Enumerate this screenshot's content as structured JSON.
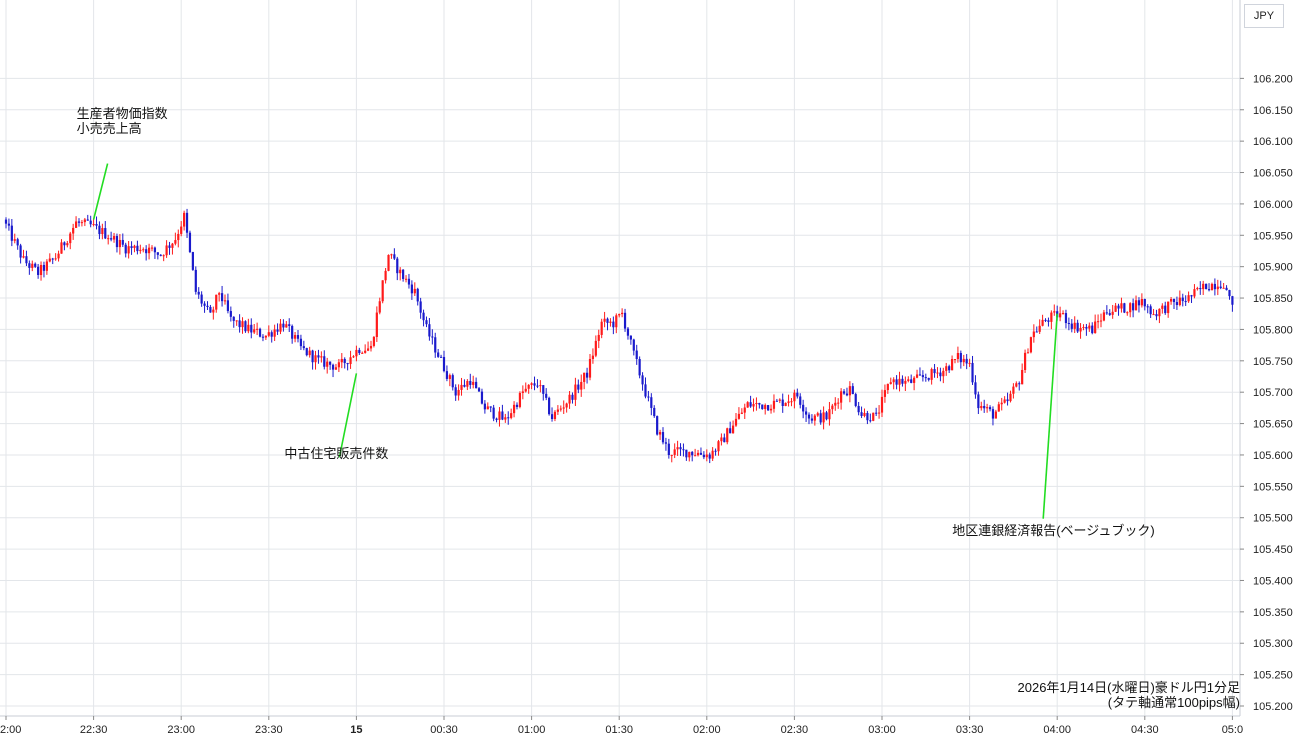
{
  "chart_data": {
    "type": "candlestick",
    "currency_label": "JPY",
    "caption_line1": "2026年1月14日(水曜日)豪ドル円1分足",
    "caption_line2": "(タテ軸通常100pips幅)",
    "ylim": [
      105.2,
      106.25
    ],
    "y_ticks": [
      "106.200",
      "106.150",
      "106.100",
      "106.050",
      "106.000",
      "105.950",
      "105.900",
      "105.850",
      "105.800",
      "105.750",
      "105.700",
      "105.650",
      "105.600",
      "105.550",
      "105.500",
      "105.450",
      "105.400",
      "105.350",
      "105.300",
      "105.250",
      "105.200"
    ],
    "x_ticks": [
      "2:00",
      "22:30",
      "23:00",
      "23:30",
      "15",
      "00:30",
      "01:00",
      "01:30",
      "02:00",
      "02:30",
      "03:00",
      "03:30",
      "04:00",
      "04:30",
      "05:0"
    ],
    "colors": {
      "up": "#ff1a1a",
      "down": "#1a1acc",
      "annotation_line": "#22dd22",
      "grid": "#e3e6ea"
    },
    "price_path": [
      {
        "t": "22:00",
        "p": 105.975
      },
      {
        "t": "22:07",
        "p": 105.91
      },
      {
        "t": "22:12",
        "p": 105.89
      },
      {
        "t": "22:18",
        "p": 105.915
      },
      {
        "t": "22:25",
        "p": 105.97
      },
      {
        "t": "22:30",
        "p": 105.965
      },
      {
        "t": "22:36",
        "p": 105.95
      },
      {
        "t": "22:42",
        "p": 105.93
      },
      {
        "t": "22:48",
        "p": 105.93
      },
      {
        "t": "22:54",
        "p": 105.92
      },
      {
        "t": "22:59",
        "p": 105.945
      },
      {
        "t": "23:02",
        "p": 105.98
      },
      {
        "t": "23:06",
        "p": 105.86
      },
      {
        "t": "23:11",
        "p": 105.82
      },
      {
        "t": "23:14",
        "p": 105.86
      },
      {
        "t": "23:18",
        "p": 105.815
      },
      {
        "t": "23:24",
        "p": 105.8
      },
      {
        "t": "23:30",
        "p": 105.79
      },
      {
        "t": "23:36",
        "p": 105.81
      },
      {
        "t": "23:42",
        "p": 105.77
      },
      {
        "t": "23:48",
        "p": 105.75
      },
      {
        "t": "23:55",
        "p": 105.74
      },
      {
        "t": "00:02",
        "p": 105.77
      },
      {
        "t": "00:06",
        "p": 105.77
      },
      {
        "t": "00:09",
        "p": 105.85
      },
      {
        "t": "00:12",
        "p": 105.92
      },
      {
        "t": "00:16",
        "p": 105.89
      },
      {
        "t": "00:21",
        "p": 105.86
      },
      {
        "t": "00:25",
        "p": 105.8
      },
      {
        "t": "00:30",
        "p": 105.75
      },
      {
        "t": "00:35",
        "p": 105.7
      },
      {
        "t": "00:40",
        "p": 105.72
      },
      {
        "t": "00:45",
        "p": 105.675
      },
      {
        "t": "00:52",
        "p": 105.655
      },
      {
        "t": "00:58",
        "p": 105.7
      },
      {
        "t": "01:03",
        "p": 105.715
      },
      {
        "t": "01:08",
        "p": 105.66
      },
      {
        "t": "01:14",
        "p": 105.69
      },
      {
        "t": "01:20",
        "p": 105.73
      },
      {
        "t": "01:25",
        "p": 105.81
      },
      {
        "t": "01:29",
        "p": 105.81
      },
      {
        "t": "01:32",
        "p": 105.825
      },
      {
        "t": "01:36",
        "p": 105.76
      },
      {
        "t": "01:40",
        "p": 105.7
      },
      {
        "t": "01:44",
        "p": 105.64
      },
      {
        "t": "01:48",
        "p": 105.605
      },
      {
        "t": "01:55",
        "p": 105.605
      },
      {
        "t": "02:02",
        "p": 105.6
      },
      {
        "t": "02:06",
        "p": 105.62
      },
      {
        "t": "02:10",
        "p": 105.65
      },
      {
        "t": "02:15",
        "p": 105.68
      },
      {
        "t": "02:22",
        "p": 105.68
      },
      {
        "t": "02:27",
        "p": 105.685
      },
      {
        "t": "02:32",
        "p": 105.695
      },
      {
        "t": "02:36",
        "p": 105.66
      },
      {
        "t": "02:42",
        "p": 105.66
      },
      {
        "t": "02:47",
        "p": 105.7
      },
      {
        "t": "02:50",
        "p": 105.705
      },
      {
        "t": "02:54",
        "p": 105.665
      },
      {
        "t": "02:59",
        "p": 105.66
      },
      {
        "t": "03:04",
        "p": 105.72
      },
      {
        "t": "03:10",
        "p": 105.715
      },
      {
        "t": "03:16",
        "p": 105.725
      },
      {
        "t": "03:22",
        "p": 105.735
      },
      {
        "t": "03:27",
        "p": 105.755
      },
      {
        "t": "03:31",
        "p": 105.745
      },
      {
        "t": "03:34",
        "p": 105.68
      },
      {
        "t": "03:39",
        "p": 105.665
      },
      {
        "t": "03:44",
        "p": 105.685
      },
      {
        "t": "03:48",
        "p": 105.72
      },
      {
        "t": "03:52",
        "p": 105.79
      },
      {
        "t": "03:57",
        "p": 105.815
      },
      {
        "t": "04:02",
        "p": 105.825
      },
      {
        "t": "04:07",
        "p": 105.805
      },
      {
        "t": "04:13",
        "p": 105.8
      },
      {
        "t": "04:18",
        "p": 105.83
      },
      {
        "t": "04:25",
        "p": 105.835
      },
      {
        "t": "04:30",
        "p": 105.845
      },
      {
        "t": "04:34",
        "p": 105.825
      },
      {
        "t": "04:40",
        "p": 105.84
      },
      {
        "t": "04:46",
        "p": 105.85
      },
      {
        "t": "04:52",
        "p": 105.87
      },
      {
        "t": "04:58",
        "p": 105.875
      },
      {
        "t": "05:00",
        "p": 105.845
      }
    ],
    "annotations": [
      {
        "lines": [
          "生産者物価指数",
          "小売売上高"
        ],
        "time": "22:30",
        "price": 105.975,
        "label_side": "above"
      },
      {
        "lines": [
          "中古住宅販売件数"
        ],
        "time": "00:00",
        "price": 105.73,
        "label_side": "below"
      },
      {
        "lines": [
          "地区連銀経済報告(ベージュブック)"
        ],
        "time": "04:00",
        "price": 105.825,
        "label_side": "below"
      }
    ]
  }
}
